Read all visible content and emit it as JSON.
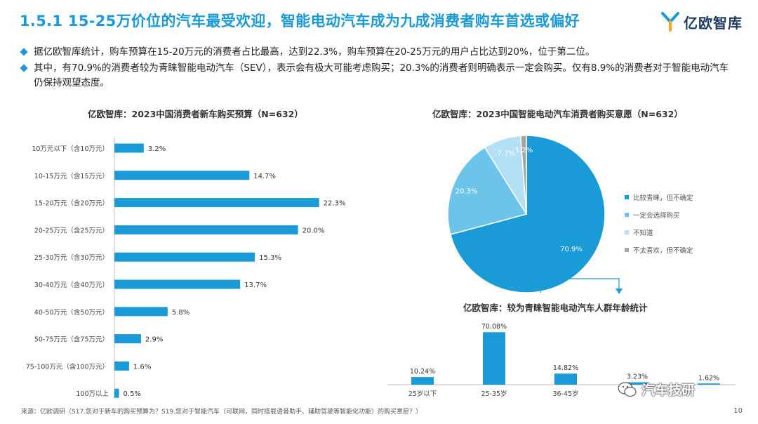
{
  "header": {
    "title": "1.5.1 15-25万价位的汽车最受欢迎，智能电动汽车成为九成消费者购车首选或偏好",
    "logo_text": "亿欧智库",
    "logo_color": "#1a9bd7"
  },
  "bullets": [
    "据亿欧智库统计，购车预算在15-20万元的消费者占比最高，达到22.3%，购车预算在20-25万元的用户占比达到20%，位于第二位。",
    "其中，有70.9%的消费者较为青睐智能电动汽车（SEV），表示会有极大可能考虑购买；20.3%的消费者则明确表示一定会购买。仅有8.9%的消费者对于智能电动汽车仍保持观望态度。"
  ],
  "chart_data": [
    {
      "type": "bar",
      "orientation": "horizontal",
      "title": "亿欧智库：2023中国消费者新车购买预算（N=632）",
      "categories": [
        "10万元以下（含10万元）",
        "10-15万元（含15万元）",
        "15-20万元（含20万元）",
        "20-25万元（含25万元）",
        "25-30万元（含30万元）",
        "30-40万元（含40万元）",
        "40-50万元（含50万元）",
        "50-75万元（含75万元）",
        "75-100万元（含100万元）",
        "100万以上"
      ],
      "values": [
        3.2,
        14.7,
        22.3,
        20.0,
        15.3,
        13.7,
        5.8,
        2.9,
        1.6,
        0.5
      ],
      "value_labels": [
        "3.2%",
        "14.7%",
        "22.3%",
        "20.0%",
        "15.3%",
        "13.7%",
        "5.8%",
        "2.9%",
        "1.6%",
        "0.5%"
      ],
      "xlim": [
        0,
        25
      ],
      "color": "#1a9bd7",
      "grid": false
    },
    {
      "type": "pie",
      "title": "亿欧智库：2023中国智能电动汽车消费者购买意愿（N=632）",
      "labels": [
        "比较青睐，但不确定",
        "一定会选择购买",
        "不知道",
        "不太喜欢，但不确定"
      ],
      "values": [
        70.9,
        20.3,
        7.7,
        1.2
      ],
      "value_labels": [
        "70.9%",
        "20.3%",
        "7.7%",
        "1.2%"
      ],
      "colors": [
        "#1a9bd7",
        "#6cc4ea",
        "#b3e0f5",
        "#a6a6a6"
      ],
      "legend": "right"
    },
    {
      "type": "bar",
      "title": "亿欧智库：较为青睐智能电动汽车人群年龄统计",
      "categories": [
        "25岁以下",
        "25-35岁",
        "36-45岁",
        "",
        ""
      ],
      "values": [
        10.24,
        70.08,
        14.82,
        3.23,
        1.62
      ],
      "value_labels": [
        "10.24%",
        "70.08%",
        "14.82%",
        "3.23%",
        "1.62%"
      ],
      "ylim": [
        0,
        75
      ],
      "color": "#1a9bd7",
      "grid": false
    }
  ],
  "footer": {
    "source": "来源：亿欧调研（S17.您对于新车的购买预算为？S19.您对于智能汽车（可联网，同时搭载语音助手、辅助驾驶等智能化功能）的购买意愿？）",
    "page_number": "10",
    "watermark": "汽车技研"
  }
}
